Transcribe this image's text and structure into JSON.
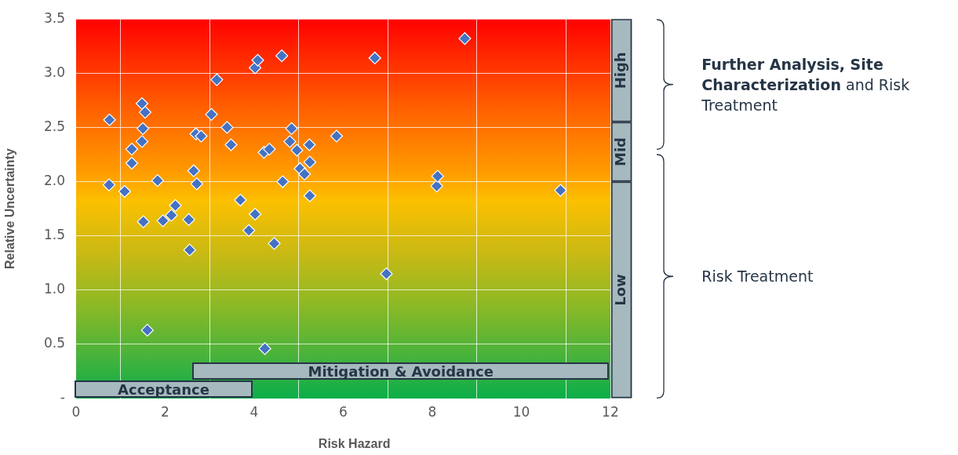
{
  "chart_data": {
    "type": "scatter",
    "xlabel": "Risk Hazard",
    "ylabel": "Relative Uncertainty",
    "series": [
      {
        "color": "#4472c4",
        "x": [
          0.75,
          0.74,
          1.09,
          1.25,
          1.25,
          1.48,
          1.55,
          1.5,
          1.48,
          1.51,
          1.83,
          1.95,
          2.14,
          2.23,
          2.53,
          2.55,
          1.6,
          2.64,
          2.71,
          2.69,
          2.81,
          3.04,
          3.16,
          3.39,
          3.48,
          3.69,
          3.88,
          4.02,
          4.02,
          4.08,
          4.62,
          4.24,
          4.22,
          4.34,
          4.45,
          4.64,
          4.84,
          4.8,
          4.96,
          5.03,
          5.13,
          5.24,
          5.25,
          5.25,
          5.85,
          6.71,
          6.97,
          8.1,
          8.12,
          8.73,
          10.88
        ],
        "values": [
          2.57,
          1.97,
          1.91,
          2.3,
          2.17,
          2.72,
          2.64,
          2.49,
          2.37,
          1.63,
          2.01,
          1.64,
          1.69,
          1.78,
          1.65,
          1.37,
          0.63,
          2.1,
          1.98,
          2.44,
          2.42,
          2.62,
          2.94,
          2.5,
          2.34,
          1.83,
          1.55,
          1.7,
          3.05,
          3.12,
          3.16,
          0.46,
          2.27,
          2.3,
          1.43,
          2.0,
          2.49,
          2.37,
          2.29,
          2.12,
          2.07,
          2.34,
          2.18,
          1.87,
          2.42,
          3.14,
          1.15,
          1.96,
          2.05,
          3.32,
          1.92
        ]
      },
      {
        "type": "bar",
        "name": "Low",
        "color": "#a6b9bf",
        "x": [
          12.25
        ],
        "values": [
          2
        ]
      },
      {
        "type": "bar",
        "name": "Mid",
        "color": "#a6b9bf",
        "x": [
          12.25
        ],
        "values": [
          0.55
        ]
      },
      {
        "type": "bar",
        "name": "High",
        "color": "#a6b9bf",
        "x": [
          12.25
        ],
        "values": [
          0.95
        ]
      }
    ],
    "stacked": true,
    "xlim": [
      0,
      12.5
    ],
    "xticks": [
      0,
      2,
      4,
      6,
      8,
      10,
      12
    ],
    "ylim": [
      0,
      3.5
    ],
    "yticks": [
      {
        "value": 0,
        "label": "-"
      },
      0.5,
      {
        "value": 1,
        "label": "1.0"
      },
      1.5,
      {
        "value": 2,
        "label": "2.0"
      },
      2.5,
      {
        "value": 3,
        "label": "3.0"
      },
      3.5
    ],
    "grid": true,
    "legend": false,
    "marker": "diamond",
    "annotations": [
      "Further Analysis, Site Characterization",
      "and Risk Treatment",
      "Risk Treatment",
      "Acceptance",
      "Mitigation & Avoidance"
    ]
  }
}
